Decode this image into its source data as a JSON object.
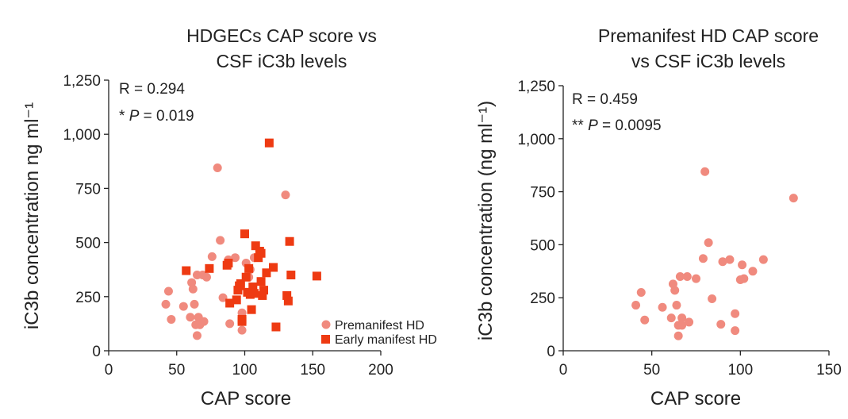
{
  "colors": {
    "premanifest": "#F08A7E",
    "early": "#EE3A12"
  },
  "chart_data": [
    {
      "type": "scatter",
      "title_lines": [
        "HDGECs CAP score vs",
        "CSF iC3b levels"
      ],
      "xlabel": "CAP score",
      "ylabel": "iC3b concentration ng ml⁻¹",
      "xlim": [
        0,
        200
      ],
      "ylim": [
        0,
        1250
      ],
      "xticks": [
        0,
        50,
        100,
        150,
        200
      ],
      "xtick_labels": [
        "0",
        "50",
        "100",
        "150",
        "200"
      ],
      "yticks": [
        0,
        250,
        500,
        750,
        1000,
        1250
      ],
      "ytick_labels": [
        "0",
        "250",
        "500",
        "750",
        "1,000",
        "1,250"
      ],
      "annotations": {
        "r": "R = 0.294",
        "p_stars": "* ",
        "p_label": "P",
        "p_value": " = 0.019"
      },
      "legend": [
        {
          "label": "Premanifest HD",
          "marker": "circle"
        },
        {
          "label": "Early manifest HD",
          "marker": "square"
        }
      ],
      "series": [
        {
          "name": "Premanifest HD",
          "marker": "circle",
          "points": [
            [
              42,
              215
            ],
            [
              44,
              275
            ],
            [
              46,
              145
            ],
            [
              55,
              205
            ],
            [
              60,
              155
            ],
            [
              61,
              315
            ],
            [
              62,
              285
            ],
            [
              63,
              215
            ],
            [
              64,
              120
            ],
            [
              65,
              70
            ],
            [
              65,
              350
            ],
            [
              66,
              155
            ],
            [
              67,
              120
            ],
            [
              69,
              350
            ],
            [
              70,
              135
            ],
            [
              72,
              340
            ],
            [
              76,
              435
            ],
            [
              80,
              845
            ],
            [
              82,
              510
            ],
            [
              84,
              245
            ],
            [
              88,
              420
            ],
            [
              89,
              125
            ],
            [
              93,
              430
            ],
            [
              98,
              175
            ],
            [
              98,
              95
            ],
            [
              101,
              405
            ],
            [
              103,
              340
            ],
            [
              104,
              375
            ],
            [
              107,
              430
            ],
            [
              130,
              720
            ]
          ]
        },
        {
          "name": "Early manifest HD",
          "marker": "square",
          "points": [
            [
              57,
              370
            ],
            [
              74,
              380
            ],
            [
              87,
              395
            ],
            [
              88,
              405
            ],
            [
              89,
              220
            ],
            [
              94,
              235
            ],
            [
              95,
              280
            ],
            [
              96,
              300
            ],
            [
              97,
              310
            ],
            [
              98,
              135
            ],
            [
              98,
              145
            ],
            [
              100,
              540
            ],
            [
              101,
              340
            ],
            [
              102,
              270
            ],
            [
              103,
              380
            ],
            [
              104,
              260
            ],
            [
              105,
              190
            ],
            [
              106,
              295
            ],
            [
              107,
              265
            ],
            [
              108,
              485
            ],
            [
              110,
              430
            ],
            [
              111,
              460
            ],
            [
              112,
              450
            ],
            [
              112,
              320
            ],
            [
              113,
              255
            ],
            [
              114,
              280
            ],
            [
              116,
              360
            ],
            [
              118,
              960
            ],
            [
              121,
              385
            ],
            [
              123,
              110
            ],
            [
              131,
              255
            ],
            [
              132,
              230
            ],
            [
              133,
              505
            ],
            [
              134,
              350
            ],
            [
              153,
              345
            ]
          ]
        }
      ]
    },
    {
      "type": "scatter",
      "title_lines": [
        "Premanifest HD CAP score",
        "vs CSF iC3b levels"
      ],
      "xlabel": "CAP score",
      "ylabel": "iC3b concentration (ng ml⁻¹)",
      "xlim": [
        0,
        150
      ],
      "ylim": [
        0,
        1250
      ],
      "xticks": [
        0,
        50,
        100,
        150
      ],
      "xtick_labels": [
        "0",
        "50",
        "100",
        "150"
      ],
      "yticks": [
        0,
        250,
        500,
        750,
        1000,
        1250
      ],
      "ytick_labels": [
        "0",
        "250",
        "500",
        "750",
        "1,000",
        "1,250"
      ],
      "annotations": {
        "r": "R = 0.459",
        "p_stars": "** ",
        "p_label": "P",
        "p_value": " = 0.0095"
      },
      "legend": [],
      "series": [
        {
          "name": "Premanifest HD",
          "marker": "circle",
          "points": [
            [
              41,
              215
            ],
            [
              44,
              275
            ],
            [
              46,
              145
            ],
            [
              56,
              205
            ],
            [
              61,
              155
            ],
            [
              62,
              315
            ],
            [
              63,
              285
            ],
            [
              64,
              215
            ],
            [
              65,
              120
            ],
            [
              65,
              70
            ],
            [
              66,
              350
            ],
            [
              67,
              155
            ],
            [
              67,
              120
            ],
            [
              70,
              350
            ],
            [
              71,
              135
            ],
            [
              75,
              340
            ],
            [
              79,
              435
            ],
            [
              80,
              845
            ],
            [
              82,
              510
            ],
            [
              84,
              245
            ],
            [
              89,
              125
            ],
            [
              90,
              420
            ],
            [
              94,
              430
            ],
            [
              97,
              175
            ],
            [
              97,
              95
            ],
            [
              100,
              335
            ],
            [
              101,
              405
            ],
            [
              102,
              340
            ],
            [
              107,
              375
            ],
            [
              113,
              430
            ],
            [
              130,
              720
            ]
          ]
        }
      ]
    }
  ]
}
